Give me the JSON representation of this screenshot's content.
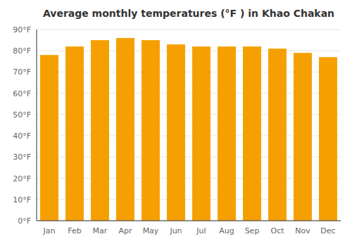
{
  "chart_data": {
    "type": "bar",
    "title": "Average monthly temperatures (°F ) in Khao Chakan",
    "categories": [
      "Jan",
      "Feb",
      "Mar",
      "Apr",
      "May",
      "Jun",
      "Jul",
      "Aug",
      "Sep",
      "Oct",
      "Nov",
      "Dec"
    ],
    "values": [
      78,
      82,
      85,
      86,
      85,
      83,
      82,
      82,
      82,
      81,
      79,
      77
    ],
    "color": "#F5A000",
    "ylim": [
      0,
      90
    ],
    "yticks": [
      {
        "value": 0,
        "label": "0°F"
      },
      {
        "value": 10,
        "label": "10°F"
      },
      {
        "value": 20,
        "label": "20°F"
      },
      {
        "value": 30,
        "label": "30°F"
      },
      {
        "value": 40,
        "label": "40°F"
      },
      {
        "value": 50,
        "label": "50°F"
      },
      {
        "value": 60,
        "label": "60°F"
      },
      {
        "value": 70,
        "label": "70°F"
      },
      {
        "value": 80,
        "label": "80°F"
      },
      {
        "value": 90,
        "label": "90°F"
      }
    ],
    "grid": true
  }
}
